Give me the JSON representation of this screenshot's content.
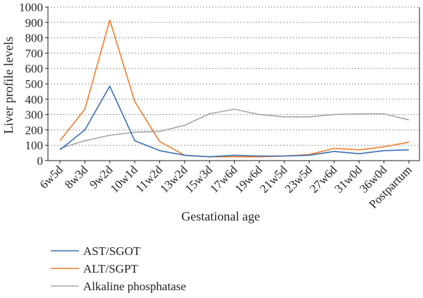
{
  "chart_data": {
    "type": "line",
    "xlabel": "Gestational age",
    "ylabel": "Liver profile levels",
    "ylim": [
      0,
      1000
    ],
    "yticks": [
      "0",
      "100",
      "200",
      "300",
      "400",
      "500",
      "600",
      "700",
      "800",
      "900",
      "1000"
    ],
    "grid": "horizontal dotted",
    "legend_position": "bottom-left",
    "categories": [
      "6w5d",
      "8w3d",
      "9w2d",
      "10w1d",
      "11w2d",
      "13w2d",
      "15w3d",
      "17w6d",
      "19w6d",
      "21w5d",
      "23w5d",
      "27w6d",
      "31w0d",
      "36w0d",
      "Postpartum"
    ],
    "series": [
      {
        "name": "AST/SGOT",
        "color": "#3a6fb6",
        "values": [
          70,
          200,
          485,
          130,
          65,
          35,
          25,
          35,
          30,
          30,
          35,
          60,
          45,
          65,
          70
        ]
      },
      {
        "name": "ALT/SGPT",
        "color": "#ef7d2d",
        "values": [
          130,
          335,
          915,
          385,
          125,
          35,
          25,
          25,
          25,
          30,
          40,
          80,
          70,
          90,
          120
        ]
      },
      {
        "name": "Alkaline phosphatase",
        "color": "#a6a6a6",
        "values": [
          80,
          130,
          165,
          185,
          190,
          230,
          305,
          335,
          300,
          285,
          285,
          300,
          305,
          305,
          265
        ]
      }
    ]
  }
}
